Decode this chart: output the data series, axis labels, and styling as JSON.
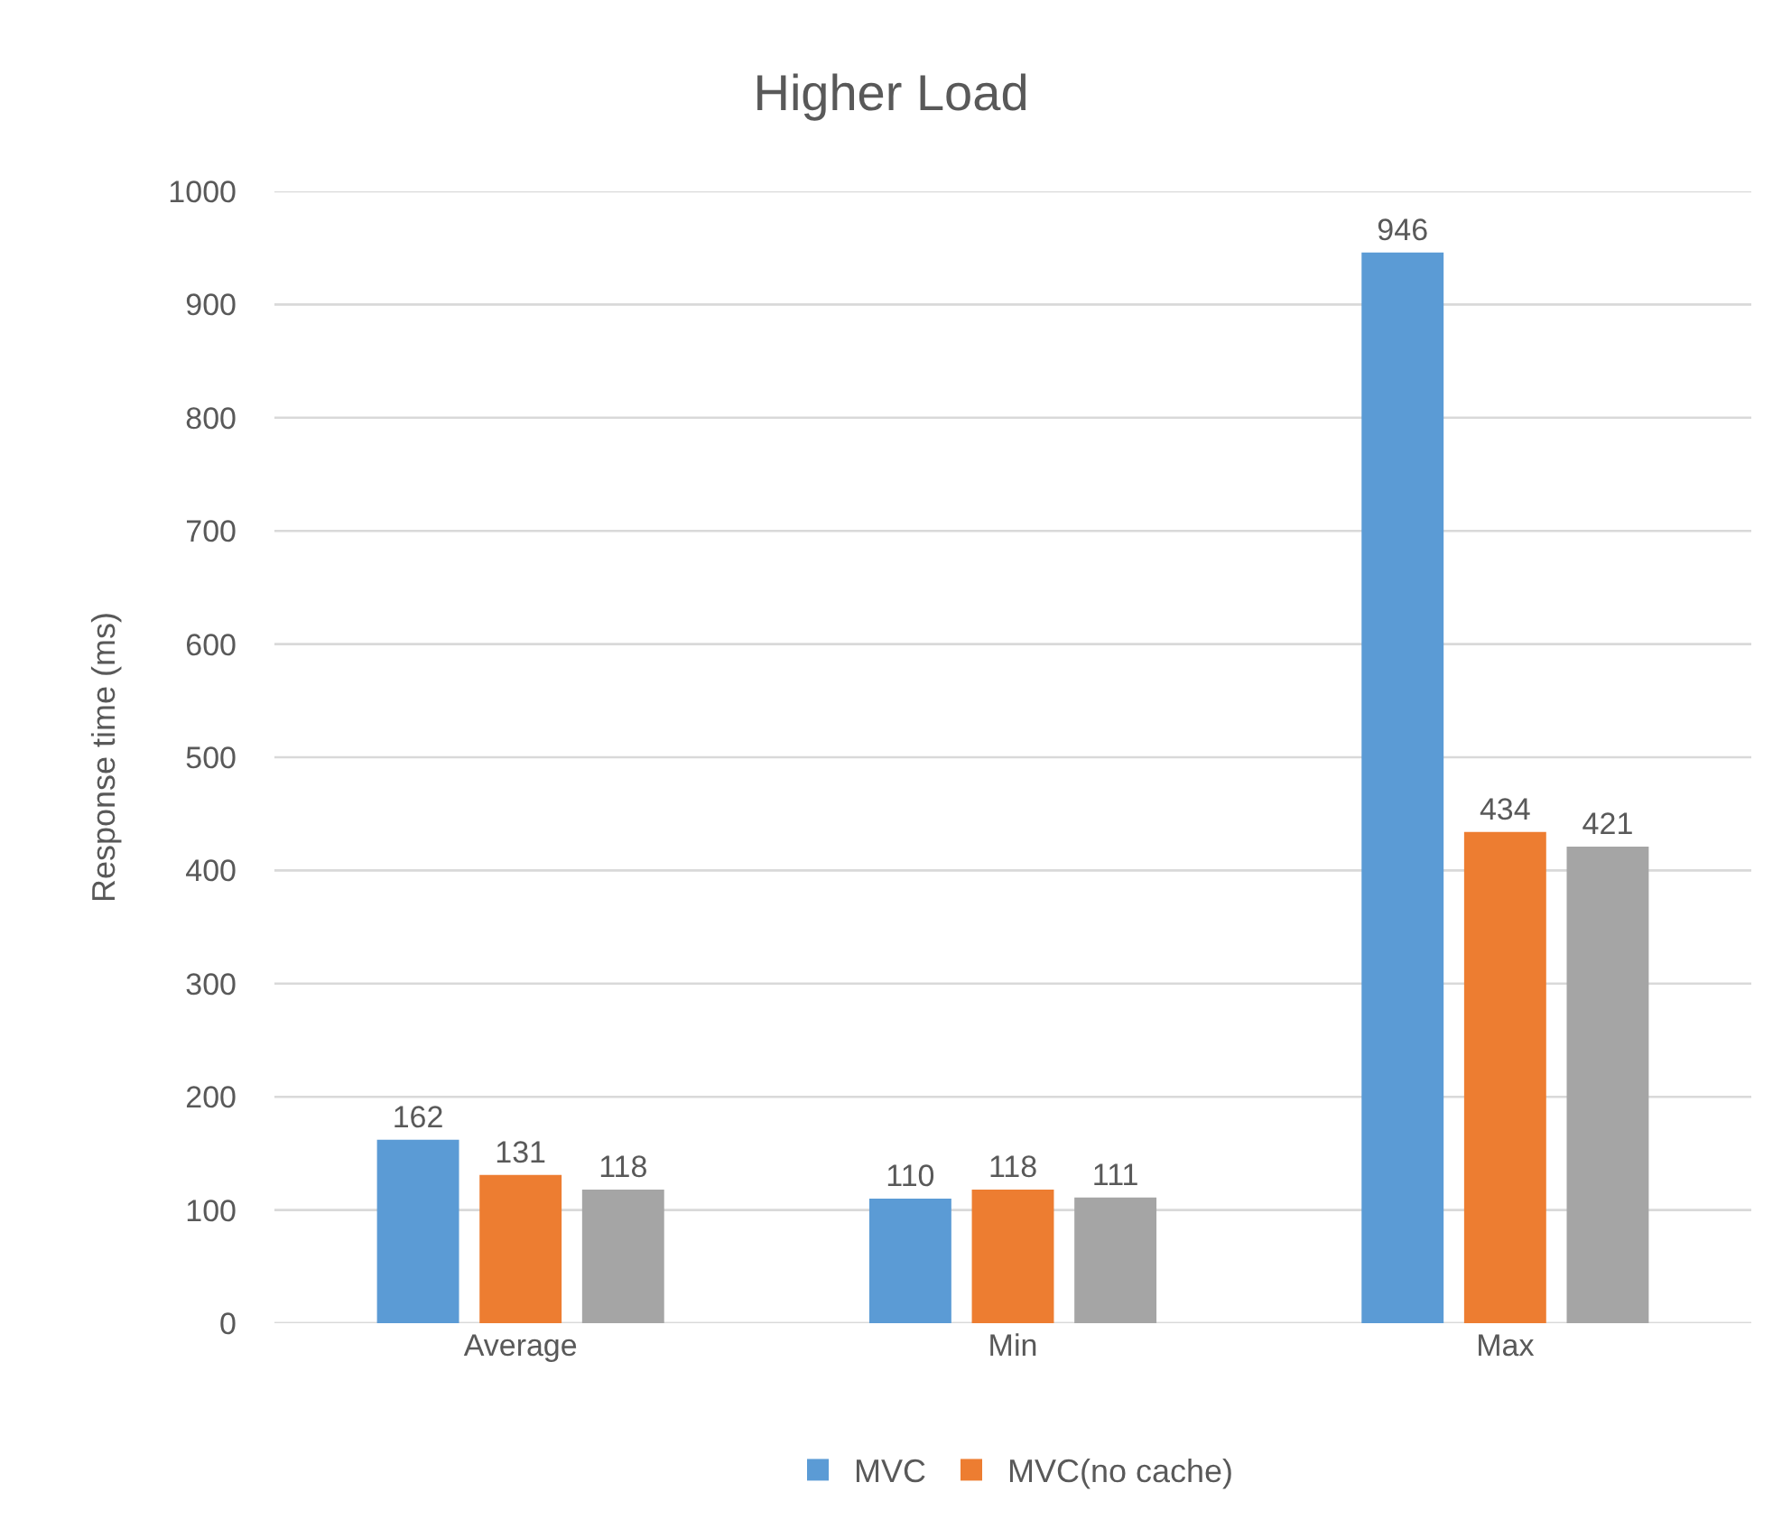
{
  "chart_data": {
    "type": "bar",
    "title": "Higher Load",
    "ylabel": "Response time (ms)",
    "categories": [
      "Average",
      "Min",
      "Max"
    ],
    "series": [
      {
        "name": "MVC",
        "color": "#5b9bd5",
        "values": [
          162,
          110,
          946
        ]
      },
      {
        "name": "MVC(no cache)",
        "color": "#ed7d31",
        "values": [
          131,
          118,
          434
        ]
      },
      {
        "color": "#a5a5a5",
        "values": [
          118,
          111,
          421
        ]
      }
    ],
    "ylim": [
      0,
      1000
    ],
    "yticks": [
      0,
      100,
      200,
      300,
      400,
      500,
      600,
      700,
      800,
      900,
      1000
    ],
    "grid": "y",
    "legend": "bottom",
    "data_labels": true
  }
}
